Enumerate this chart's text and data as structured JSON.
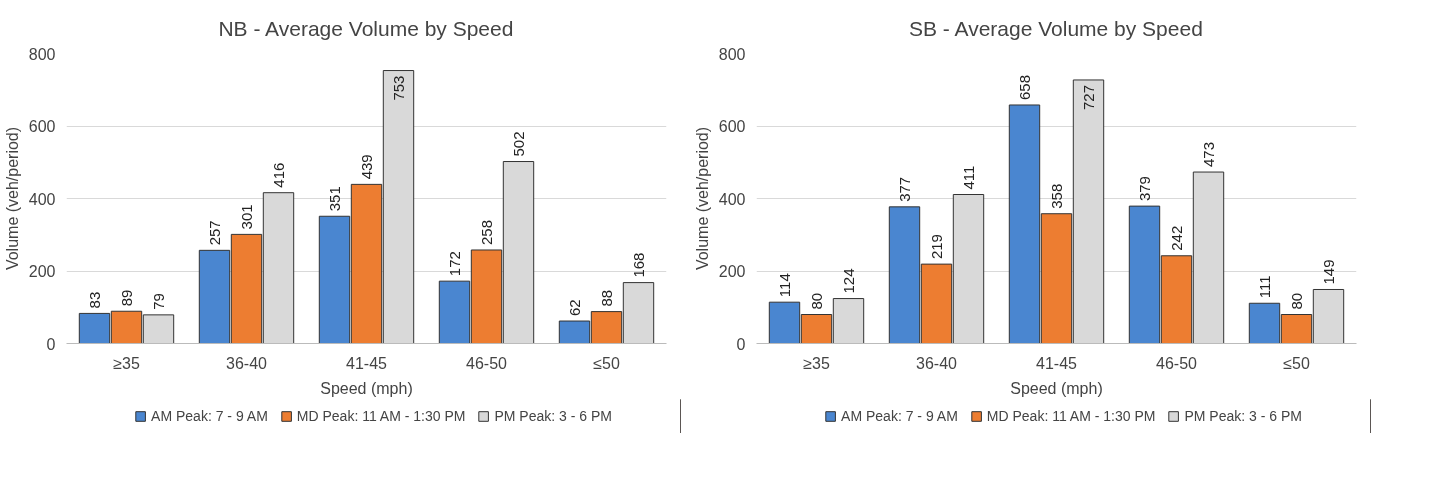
{
  "chart_data": [
    {
      "type": "bar",
      "title": "NB - Average Volume by Speed",
      "xlabel": "Speed (mph)",
      "ylabel": "Volume (veh/period)",
      "categories": [
        "≥35",
        "36-40",
        "41-45",
        "46-50",
        "≤50"
      ],
      "series": [
        {
          "name": "AM Peak: 7 - 9 AM",
          "color": "#4a86d0",
          "values": [
            83,
            257,
            351,
            172,
            62
          ]
        },
        {
          "name": "MD Peak: 11 AM - 1:30 PM",
          "color": "#ed7d31",
          "values": [
            89,
            301,
            439,
            258,
            88
          ]
        },
        {
          "name": "PM Peak: 3 - 6 PM",
          "color": "#d9d9d9",
          "values": [
            79,
            416,
            753,
            502,
            168
          ]
        }
      ],
      "ylim": [
        0,
        800
      ],
      "yticks": [
        0,
        200,
        400,
        600,
        800
      ],
      "grid": "y",
      "legend": "bottom",
      "data_labels": true
    },
    {
      "type": "bar",
      "title": "SB - Average Volume by Speed",
      "xlabel": "Speed (mph)",
      "ylabel": "Volume (veh/period)",
      "categories": [
        "≥35",
        "36-40",
        "41-45",
        "46-50",
        "≤50"
      ],
      "series": [
        {
          "name": "AM Peak: 7 - 9 AM",
          "color": "#4a86d0",
          "values": [
            114,
            377,
            658,
            379,
            111
          ]
        },
        {
          "name": "MD Peak: 11 AM - 1:30 PM",
          "color": "#ed7d31",
          "values": [
            80,
            219,
            358,
            242,
            80
          ]
        },
        {
          "name": "PM Peak: 3 - 6 PM",
          "color": "#d9d9d9",
          "values": [
            124,
            411,
            727,
            473,
            149
          ]
        }
      ],
      "ylim": [
        0,
        800
      ],
      "yticks": [
        0,
        200,
        400,
        600,
        800
      ],
      "grid": "y",
      "legend": "bottom",
      "data_labels": true
    }
  ]
}
